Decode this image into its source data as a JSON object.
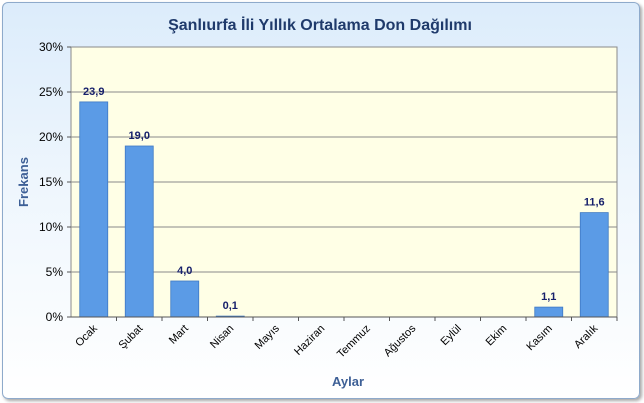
{
  "chart_data": {
    "type": "bar",
    "title": "Şanlıurfa İli Yıllık Ortalama Don Dağılımı",
    "xlabel": "Aylar",
    "ylabel": "Frekans",
    "categories": [
      "Ocak",
      "Şubat",
      "Mart",
      "Nisan",
      "Mayıs",
      "Haziran",
      "Temmuz",
      "Ağustos",
      "Eylül",
      "Ekim",
      "Kasım",
      "Aralık"
    ],
    "values": [
      23.9,
      19.0,
      4.0,
      0.1,
      0,
      0,
      0,
      0,
      0,
      0,
      1.1,
      11.6
    ],
    "data_labels": [
      "23,9",
      "19,0",
      "4,0",
      "0,1",
      "",
      "",
      "",
      "",
      "",
      "",
      "1,1",
      "11,6"
    ],
    "yticks": [
      "0%",
      "5%",
      "10%",
      "15%",
      "20%",
      "25%",
      "30%"
    ],
    "ylim": [
      0,
      30
    ],
    "grid": true,
    "legend": "none",
    "colors": {
      "bar": "#5b9be6",
      "bar_edge": "#3f79c4",
      "plot_bg": "#ffffe6",
      "label": "#17206b",
      "title": "#1f3a6b"
    }
  }
}
